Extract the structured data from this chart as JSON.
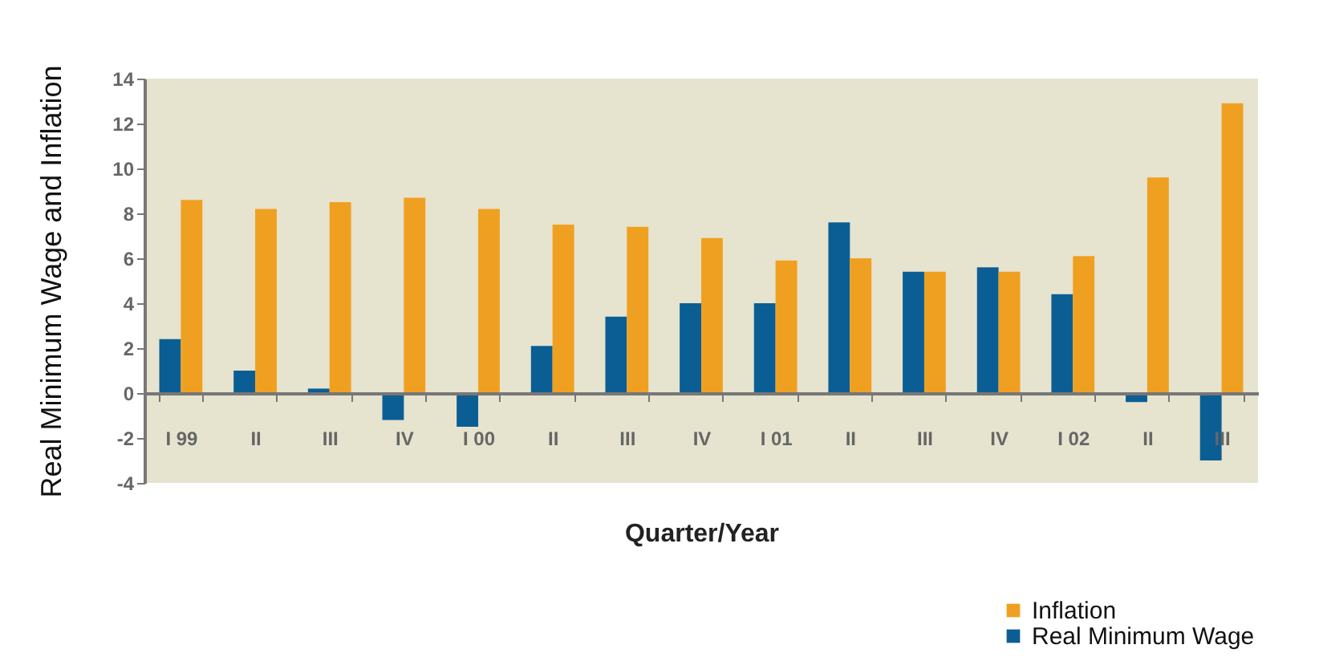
{
  "chart_data": {
    "type": "bar",
    "xlabel": "Quarter/Year",
    "ylabel": "Real Minimum Wage and Inflation",
    "categories": [
      "I 99",
      "II",
      "III",
      "IV",
      "I 00",
      "II",
      "III",
      "IV",
      "I 01",
      "II",
      "III",
      "IV",
      "I 02",
      "II",
      "III"
    ],
    "series": [
      {
        "name": "Real Minimum Wage",
        "color": "#0b5e94",
        "values": [
          2.4,
          1.0,
          0.2,
          -1.2,
          -1.5,
          2.1,
          3.4,
          4.0,
          4.0,
          7.6,
          5.4,
          5.6,
          4.4,
          -0.4,
          -3.0
        ]
      },
      {
        "name": "Inflation",
        "color": "#f0a020",
        "values": [
          8.6,
          8.2,
          8.5,
          8.7,
          8.2,
          7.5,
          7.4,
          6.9,
          5.9,
          6.0,
          5.4,
          5.4,
          6.1,
          9.6,
          12.9
        ]
      }
    ],
    "ylim": [
      -4,
      14
    ],
    "yticks": [
      -4,
      -2,
      0,
      2,
      4,
      6,
      8,
      10,
      12,
      14
    ],
    "legend": "bottom right"
  }
}
